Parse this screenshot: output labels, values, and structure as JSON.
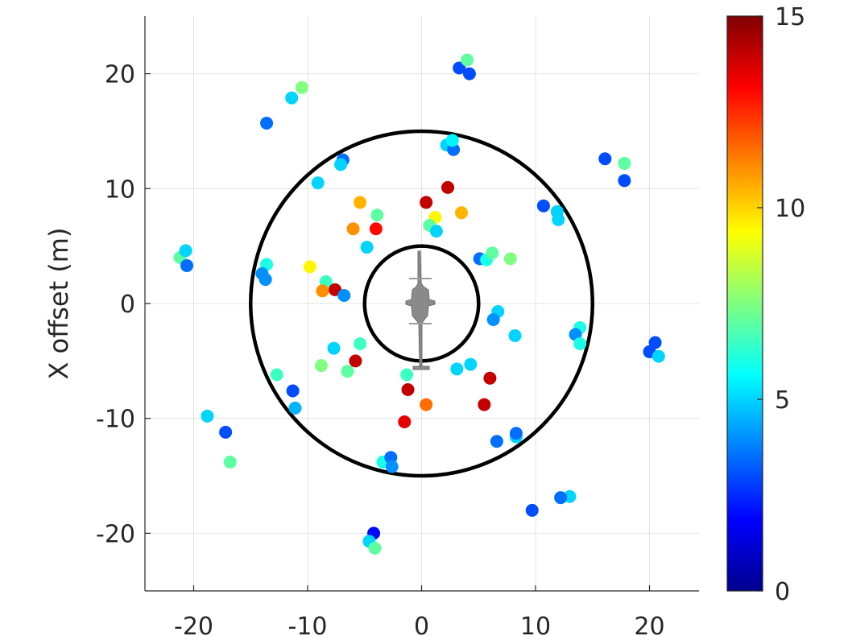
{
  "chart_data": {
    "type": "scatter",
    "title": "",
    "xlabel": "",
    "ylabel": "X offset (m)",
    "xlim": [
      -25,
      25
    ],
    "ylim": [
      -25,
      25
    ],
    "xticks": [
      "-20",
      "-10",
      "0",
      "10",
      "20"
    ],
    "yticks": [
      "-20",
      "-10",
      "0",
      "10",
      "20"
    ],
    "grid": true,
    "colormap": "jet",
    "clim": [
      0,
      15
    ],
    "colorbar_ticks": [
      "0",
      "5",
      "10",
      "15"
    ],
    "reference_circles_radius": [
      5,
      15
    ],
    "center_marker": "helicopter-silhouette",
    "points": [
      {
        "x": 3.3,
        "y": 20.5,
        "c": 3.0
      },
      {
        "x": 4.2,
        "y": 20.0,
        "c": 3.0
      },
      {
        "x": 4.0,
        "y": 21.2,
        "c": 7.0
      },
      {
        "x": -10.5,
        "y": 18.8,
        "c": 7.5
      },
      {
        "x": -11.4,
        "y": 17.9,
        "c": 5.0
      },
      {
        "x": -13.6,
        "y": 15.7,
        "c": 3.5
      },
      {
        "x": 16.1,
        "y": 12.6,
        "c": 3.0
      },
      {
        "x": 17.8,
        "y": 12.2,
        "c": 7.0
      },
      {
        "x": 17.8,
        "y": 10.7,
        "c": 3.0
      },
      {
        "x": 2.2,
        "y": 13.8,
        "c": 5.0
      },
      {
        "x": 2.8,
        "y": 13.4,
        "c": 3.5
      },
      {
        "x": 2.7,
        "y": 14.2,
        "c": 5.5
      },
      {
        "x": -6.9,
        "y": 12.5,
        "c": 3.5
      },
      {
        "x": -7.1,
        "y": 12.1,
        "c": 5.0
      },
      {
        "x": -9.1,
        "y": 10.5,
        "c": 5.0
      },
      {
        "x": 2.3,
        "y": 10.1,
        "c": 14.0
      },
      {
        "x": 0.4,
        "y": 8.8,
        "c": 14.0
      },
      {
        "x": -5.4,
        "y": 8.8,
        "c": 10.5
      },
      {
        "x": 3.5,
        "y": 7.9,
        "c": 10.5
      },
      {
        "x": -3.9,
        "y": 7.7,
        "c": 7.0
      },
      {
        "x": 1.2,
        "y": 7.5,
        "c": 9.5
      },
      {
        "x": 0.7,
        "y": 6.8,
        "c": 7.0
      },
      {
        "x": 1.3,
        "y": 6.3,
        "c": 5.0
      },
      {
        "x": -6.0,
        "y": 6.5,
        "c": 11.0
      },
      {
        "x": -4.0,
        "y": 6.5,
        "c": 13.0
      },
      {
        "x": -4.8,
        "y": 4.9,
        "c": 5.0
      },
      {
        "x": 10.7,
        "y": 8.5,
        "c": 3.0
      },
      {
        "x": 11.9,
        "y": 8.0,
        "c": 5.0
      },
      {
        "x": 12.0,
        "y": 7.3,
        "c": 5.0
      },
      {
        "x": -21.2,
        "y": 4.0,
        "c": 7.0
      },
      {
        "x": -20.7,
        "y": 4.6,
        "c": 5.0
      },
      {
        "x": -20.6,
        "y": 3.3,
        "c": 3.5
      },
      {
        "x": -13.6,
        "y": 3.4,
        "c": 6.0
      },
      {
        "x": -14.0,
        "y": 2.6,
        "c": 4.0
      },
      {
        "x": -13.7,
        "y": 2.1,
        "c": 4.0
      },
      {
        "x": -9.8,
        "y": 3.2,
        "c": 9.5
      },
      {
        "x": -8.4,
        "y": 1.9,
        "c": 6.5
      },
      {
        "x": -7.6,
        "y": 1.2,
        "c": 14.0
      },
      {
        "x": -8.7,
        "y": 1.1,
        "c": 11.0
      },
      {
        "x": -6.8,
        "y": 0.7,
        "c": 4.0
      },
      {
        "x": 5.1,
        "y": 3.9,
        "c": 3.5
      },
      {
        "x": 5.7,
        "y": 3.8,
        "c": 6.0
      },
      {
        "x": 6.2,
        "y": 4.4,
        "c": 7.0
      },
      {
        "x": 7.8,
        "y": 3.9,
        "c": 7.5
      },
      {
        "x": 6.7,
        "y": -0.7,
        "c": 5.0
      },
      {
        "x": 6.3,
        "y": -1.4,
        "c": 4.0
      },
      {
        "x": 8.2,
        "y": -2.8,
        "c": 5.0
      },
      {
        "x": 13.9,
        "y": -2.1,
        "c": 6.0
      },
      {
        "x": 13.5,
        "y": -2.7,
        "c": 4.0
      },
      {
        "x": 13.9,
        "y": -3.5,
        "c": 6.0
      },
      {
        "x": 20.5,
        "y": -3.4,
        "c": 3.0
      },
      {
        "x": 20.0,
        "y": -4.2,
        "c": 3.0
      },
      {
        "x": 20.8,
        "y": -4.6,
        "c": 5.0
      },
      {
        "x": -7.7,
        "y": -3.9,
        "c": 5.0
      },
      {
        "x": -5.4,
        "y": -3.5,
        "c": 6.5
      },
      {
        "x": -5.8,
        "y": -5.0,
        "c": 14.0
      },
      {
        "x": -8.8,
        "y": -5.4,
        "c": 7.5
      },
      {
        "x": -6.5,
        "y": -5.9,
        "c": 7.0
      },
      {
        "x": -12.7,
        "y": -6.2,
        "c": 6.5
      },
      {
        "x": 4.3,
        "y": -5.3,
        "c": 5.0
      },
      {
        "x": 3.1,
        "y": -5.7,
        "c": 5.0
      },
      {
        "x": 6.0,
        "y": -6.5,
        "c": 14.0
      },
      {
        "x": -1.3,
        "y": -6.2,
        "c": 6.5
      },
      {
        "x": -1.2,
        "y": -7.5,
        "c": 14.0
      },
      {
        "x": -11.3,
        "y": -7.6,
        "c": 3.0
      },
      {
        "x": -11.1,
        "y": -9.1,
        "c": 4.5
      },
      {
        "x": 0.4,
        "y": -8.8,
        "c": 11.5
      },
      {
        "x": 5.5,
        "y": -8.8,
        "c": 14.0
      },
      {
        "x": -18.8,
        "y": -9.8,
        "c": 5.0
      },
      {
        "x": -1.5,
        "y": -10.3,
        "c": 13.5
      },
      {
        "x": -17.2,
        "y": -11.2,
        "c": 3.0
      },
      {
        "x": 6.6,
        "y": -12.0,
        "c": 3.5
      },
      {
        "x": 8.3,
        "y": -11.6,
        "c": 5.0
      },
      {
        "x": 8.3,
        "y": -11.3,
        "c": 3.5
      },
      {
        "x": -16.8,
        "y": -13.8,
        "c": 7.0
      },
      {
        "x": -3.4,
        "y": -13.8,
        "c": 6.0
      },
      {
        "x": -2.7,
        "y": -13.4,
        "c": 3.5
      },
      {
        "x": -2.6,
        "y": -14.2,
        "c": 4.0
      },
      {
        "x": 9.7,
        "y": -18.0,
        "c": 3.0
      },
      {
        "x": 13.0,
        "y": -16.8,
        "c": 5.0
      },
      {
        "x": 12.2,
        "y": -16.9,
        "c": 3.5
      },
      {
        "x": -4.2,
        "y": -20.0,
        "c": 2.0
      },
      {
        "x": -4.6,
        "y": -20.7,
        "c": 5.0
      },
      {
        "x": -4.1,
        "y": -21.3,
        "c": 7.0
      }
    ]
  }
}
